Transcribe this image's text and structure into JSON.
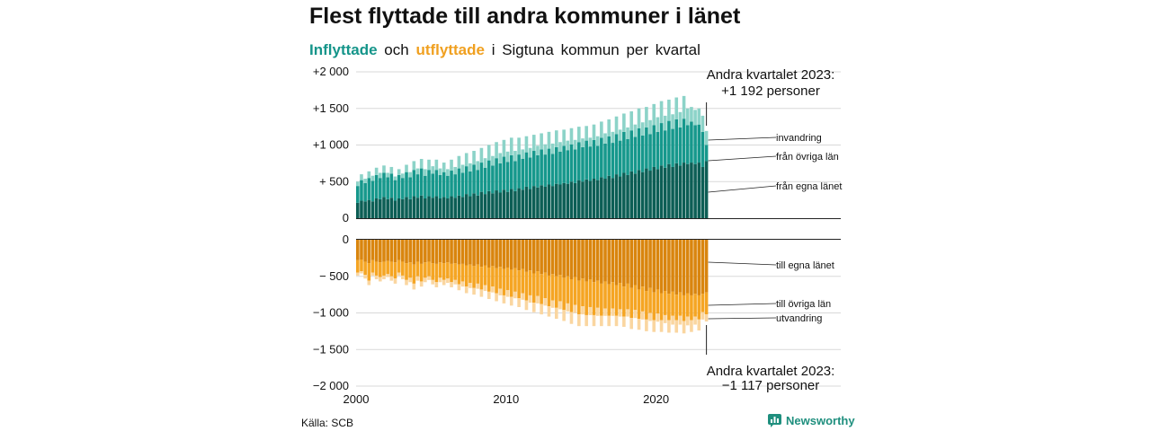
{
  "title": "Flest flyttade till andra kommuner i länet",
  "subtitle": {
    "in_word": "Inflyttade",
    "and_word": "och",
    "out_word": "utflyttade",
    "rest": "i Sigtuna kommun per kvartal"
  },
  "source": "Källa: SCB",
  "brand": {
    "name": "Newsworthy",
    "icon": "newsworthy-logo-icon",
    "color": "#1f8f7e"
  },
  "colors": {
    "in_own": "#0c5e55",
    "in_other": "#16988c",
    "in_immig": "#8cd3c8",
    "out_own": "#d9850e",
    "out_other": "#f5a523",
    "out_emig": "#fad6a0",
    "grid": "#d9d9d9",
    "axis": "#222222"
  },
  "chart_data": {
    "type": "bar",
    "stacked": true,
    "x_start": "2000 Q1",
    "x_end": "2023 Q2",
    "period": "quarter",
    "quarters_per_year": 4,
    "x_ticks": [
      "2000",
      "2010",
      "2020"
    ],
    "y_ticks": {
      "top": [
        {
          "value": 2000,
          "label": "+2 000"
        },
        {
          "value": 1500,
          "label": "+1 500"
        },
        {
          "value": 1000,
          "label": "+1 000"
        },
        {
          "value": 500,
          "label": "+  500"
        },
        {
          "value": 0,
          "label": "0"
        }
      ],
      "bottom": [
        {
          "value": 0,
          "label": "0"
        },
        {
          "value": -500,
          "label": "−  500"
        },
        {
          "value": -1000,
          "label": "−1 000"
        },
        {
          "value": -1500,
          "label": "−1 500"
        },
        {
          "value": -2000,
          "label": "−2 000"
        }
      ]
    },
    "top_ylim": [
      0,
      2000
    ],
    "bottom_ylim": [
      -2000,
      0
    ],
    "inflow": {
      "from_own_county": [
        210,
        240,
        230,
        250,
        230,
        270,
        260,
        290,
        260,
        280,
        240,
        270,
        260,
        290,
        260,
        300,
        280,
        310,
        270,
        300,
        280,
        300,
        270,
        290,
        270,
        300,
        280,
        310,
        290,
        330,
        300,
        340,
        310,
        360,
        330,
        370,
        340,
        380,
        350,
        390,
        360,
        400,
        370,
        410,
        390,
        430,
        400,
        440,
        420,
        450,
        430,
        460,
        440,
        470,
        460,
        480,
        470,
        500,
        480,
        520,
        500,
        530,
        510,
        540,
        520,
        560,
        540,
        580,
        550,
        600,
        570,
        620,
        590,
        640,
        610,
        660,
        630,
        680,
        650,
        700,
        670,
        720,
        690,
        740,
        700,
        750,
        720,
        760,
        740,
        760,
        740,
        760,
        700,
        780
      ],
      "from_other_counties": [
        230,
        280,
        250,
        300,
        280,
        320,
        290,
        330,
        300,
        330,
        280,
        320,
        290,
        340,
        300,
        360,
        320,
        370,
        310,
        360,
        330,
        360,
        320,
        340,
        310,
        350,
        320,
        370,
        330,
        380,
        340,
        390,
        350,
        400,
        360,
        420,
        380,
        440,
        400,
        450,
        410,
        460,
        410,
        460,
        420,
        470,
        430,
        480,
        440,
        490,
        440,
        490,
        440,
        500,
        450,
        510,
        460,
        510,
        460,
        520,
        470,
        530,
        470,
        530,
        470,
        540,
        480,
        540,
        480,
        550,
        490,
        560,
        490,
        560,
        500,
        570,
        500,
        560,
        500,
        570,
        510,
        580,
        510,
        590,
        520,
        600,
        520,
        600,
        530,
        560,
        530,
        520,
        480,
        220
      ],
      "immigration": [
        60,
        80,
        60,
        90,
        70,
        100,
        70,
        100,
        60,
        90,
        50,
        80,
        60,
        100,
        70,
        120,
        80,
        130,
        90,
        140,
        100,
        140,
        90,
        130,
        90,
        150,
        100,
        170,
        110,
        180,
        110,
        190,
        120,
        200,
        130,
        210,
        130,
        220,
        140,
        230,
        140,
        240,
        140,
        230,
        130,
        220,
        130,
        220,
        130,
        220,
        140,
        230,
        140,
        230,
        130,
        220,
        130,
        220,
        130,
        210,
        120,
        200,
        120,
        210,
        130,
        220,
        140,
        230,
        150,
        240,
        150,
        250,
        160,
        260,
        170,
        270,
        180,
        280,
        190,
        290,
        200,
        300,
        200,
        290,
        200,
        300,
        210,
        310,
        230,
        200,
        210,
        220,
        220,
        192
      ]
    },
    "outflow": {
      "to_own_county": [
        -280,
        -270,
        -300,
        -320,
        -280,
        -300,
        -310,
        -300,
        -290,
        -300,
        -310,
        -280,
        -300,
        -320,
        -310,
        -340,
        -300,
        -330,
        -310,
        -300,
        -320,
        -330,
        -310,
        -320,
        -310,
        -330,
        -320,
        -340,
        -330,
        -350,
        -340,
        -360,
        -340,
        -370,
        -350,
        -380,
        -360,
        -390,
        -370,
        -400,
        -380,
        -410,
        -390,
        -420,
        -400,
        -440,
        -420,
        -460,
        -430,
        -470,
        -450,
        -490,
        -470,
        -500,
        -480,
        -520,
        -500,
        -540,
        -510,
        -560,
        -530,
        -570,
        -540,
        -580,
        -560,
        -600,
        -570,
        -610,
        -580,
        -620,
        -590,
        -640,
        -600,
        -660,
        -620,
        -680,
        -640,
        -700,
        -660,
        -720,
        -680,
        -730,
        -700,
        -740,
        -710,
        -750,
        -720,
        -760,
        -730,
        -760,
        -740,
        -760,
        -740,
        -720
      ],
      "to_other_counties": [
        -170,
        -160,
        -180,
        -240,
        -170,
        -190,
        -200,
        -190,
        -180,
        -200,
        -220,
        -170,
        -190,
        -230,
        -210,
        -260,
        -200,
        -240,
        -210,
        -200,
        -230,
        -250,
        -210,
        -230,
        -220,
        -250,
        -230,
        -270,
        -240,
        -290,
        -250,
        -300,
        -260,
        -310,
        -270,
        -330,
        -280,
        -340,
        -300,
        -360,
        -310,
        -370,
        -320,
        -380,
        -330,
        -390,
        -340,
        -400,
        -340,
        -410,
        -350,
        -420,
        -360,
        -430,
        -360,
        -440,
        -370,
        -450,
        -380,
        -460,
        -380,
        -460,
        -380,
        -450,
        -370,
        -440,
        -370,
        -430,
        -360,
        -420,
        -360,
        -410,
        -350,
        -410,
        -340,
        -400,
        -340,
        -390,
        -340,
        -380,
        -330,
        -370,
        -330,
        -360,
        -330,
        -350,
        -320,
        -350,
        -320,
        -340,
        -310,
        -330,
        -250,
        -300
      ],
      "emigration": [
        -40,
        -30,
        -50,
        -60,
        -40,
        -50,
        -60,
        -50,
        -40,
        -60,
        -70,
        -40,
        -50,
        -70,
        -60,
        -80,
        -60,
        -70,
        -60,
        -50,
        -60,
        -70,
        -60,
        -70,
        -60,
        -70,
        -60,
        -80,
        -70,
        -90,
        -70,
        -90,
        -70,
        -100,
        -80,
        -100,
        -80,
        -110,
        -90,
        -110,
        -90,
        -120,
        -90,
        -120,
        -90,
        -130,
        -100,
        -130,
        -100,
        -140,
        -100,
        -140,
        -100,
        -150,
        -110,
        -150,
        -110,
        -160,
        -110,
        -160,
        -110,
        -150,
        -110,
        -150,
        -110,
        -140,
        -100,
        -140,
        -100,
        -140,
        -100,
        -140,
        -100,
        -150,
        -110,
        -150,
        -110,
        -160,
        -110,
        -160,
        -110,
        -160,
        -110,
        -170,
        -120,
        -170,
        -120,
        -170,
        -120,
        -160,
        -110,
        -150,
        -100,
        -97
      ]
    },
    "segment_labels": {
      "immigration": "invandring",
      "from_other_counties": "från övriga län",
      "from_own_county": "från egna länet",
      "to_own_county": "till egna länet",
      "to_other_counties": "till övriga län",
      "emigration": "utvandring"
    },
    "annotations": {
      "top": {
        "line1": "Andra kvartalet 2023:",
        "line2": "+1 192 personer",
        "value": 1192
      },
      "bottom": {
        "line1": "Andra kvartalet 2023:",
        "line2": "−1 117 personer",
        "value": -1117
      }
    },
    "grid": true
  }
}
